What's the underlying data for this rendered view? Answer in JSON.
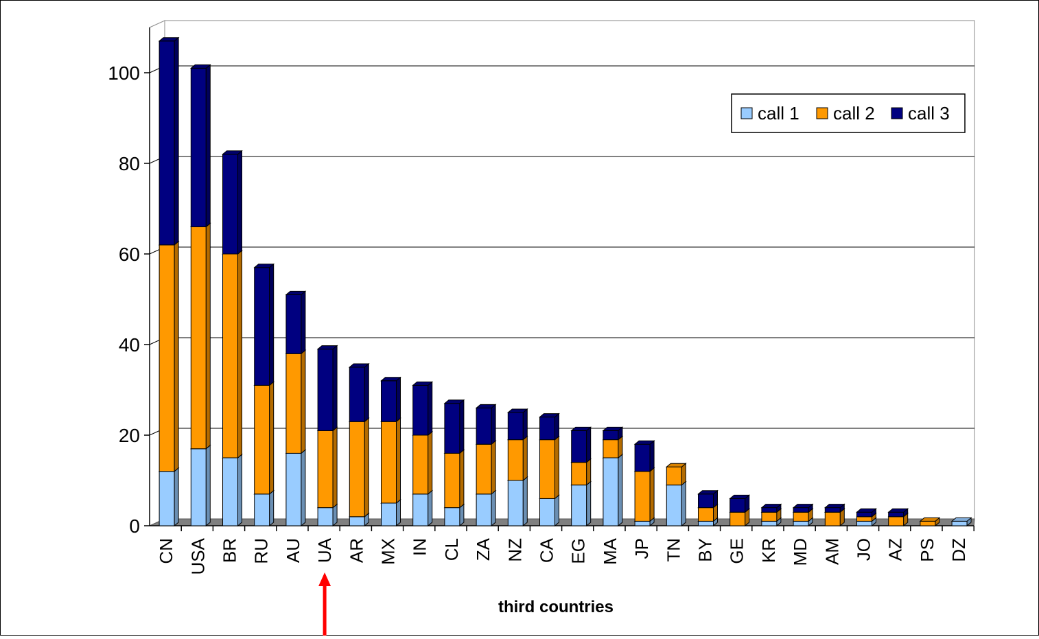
{
  "chart_data": {
    "type": "bar",
    "stacked": true,
    "three_d": true,
    "title": "",
    "xlabel": "third countries",
    "ylabel": "",
    "ylim": [
      0,
      100
    ],
    "yticks": [
      0,
      20,
      40,
      60,
      80,
      100
    ],
    "grid": true,
    "legend_position": "top-right",
    "categories": [
      "CN",
      "USA",
      "BR",
      "RU",
      "AU",
      "UA",
      "AR",
      "MX",
      "IN",
      "CL",
      "ZA",
      "NZ",
      "CA",
      "EG",
      "MA",
      "JP",
      "TN",
      "BY",
      "GE",
      "KR",
      "MD",
      "AM",
      "JO",
      "AZ",
      "PS",
      "DZ"
    ],
    "series": [
      {
        "name": "call 1",
        "color": "#99ccff",
        "values": [
          12,
          17,
          15,
          7,
          16,
          4,
          2,
          5,
          7,
          4,
          7,
          10,
          6,
          9,
          15,
          1,
          9,
          1,
          0,
          1,
          1,
          0,
          1,
          0,
          0,
          1
        ]
      },
      {
        "name": "call 2",
        "color": "#ff9900",
        "values": [
          50,
          49,
          45,
          24,
          22,
          17,
          21,
          18,
          13,
          12,
          11,
          9,
          13,
          5,
          4,
          11,
          4,
          3,
          3,
          2,
          2,
          3,
          1,
          2,
          1,
          0
        ]
      },
      {
        "name": "call 3",
        "color": "#000080",
        "values": [
          45,
          35,
          22,
          26,
          13,
          18,
          12,
          9,
          11,
          11,
          8,
          6,
          5,
          7,
          2,
          6,
          0,
          3,
          3,
          1,
          1,
          1,
          1,
          1,
          0,
          0
        ]
      }
    ],
    "annotation": {
      "type": "arrow",
      "color": "#ff0000",
      "points_to": "UA"
    }
  }
}
